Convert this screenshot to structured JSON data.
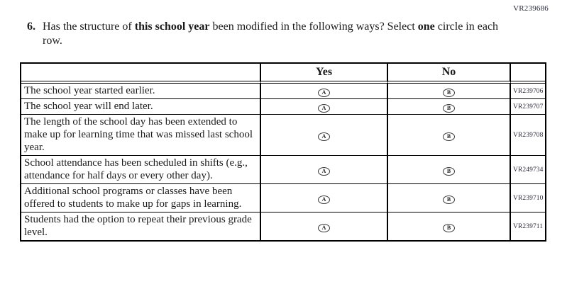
{
  "page": {
    "corner_code": "VR239686",
    "colors": {
      "background": "#ffffff",
      "text": "#1a1a1a",
      "code_text": "#2b2b3c",
      "table_border": "#000000"
    }
  },
  "question": {
    "number": "6.",
    "part1": "Has the structure of ",
    "part2_bold": "this school year",
    "part3": " been modified in the following ways? Select ",
    "part4_bold": "one",
    "part5": " circle in each row."
  },
  "table": {
    "headers": {
      "statement": "",
      "yes": "Yes",
      "no": "No",
      "code": ""
    },
    "rows": [
      {
        "statement": "The school year started earlier.",
        "yes_label": "A",
        "no_label": "B",
        "code": "VR239706"
      },
      {
        "statement": "The school year will end later.",
        "yes_label": "A",
        "no_label": "B",
        "code": "VR239707"
      },
      {
        "statement": "The length of the school day has been extended to make up for learning time that was missed last school year.",
        "yes_label": "A",
        "no_label": "B",
        "code": "VR239708"
      },
      {
        "statement": "School attendance has been scheduled in shifts (e.g., attendance for half days or every other day).",
        "yes_label": "A",
        "no_label": "B",
        "code": "VR249734"
      },
      {
        "statement": "Additional school programs or classes have been offered to students to make up for gaps in learning.",
        "yes_label": "A",
        "no_label": "B",
        "code": "VR239710"
      },
      {
        "statement": "Students had the option to repeat their previous grade level.",
        "yes_label": "A",
        "no_label": "B",
        "code": "VR239711"
      }
    ]
  }
}
